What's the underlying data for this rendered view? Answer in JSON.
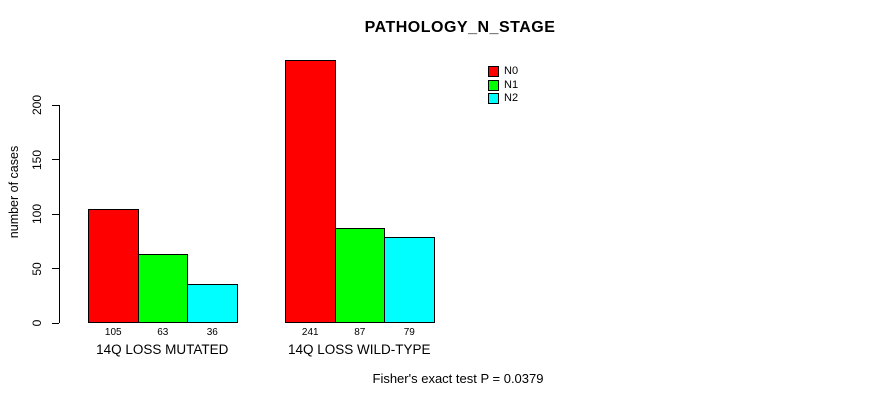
{
  "title": "PATHOLOGY_N_STAGE",
  "annotation": "Fisher's exact test P = 0.0379",
  "chart_data": {
    "type": "bar",
    "grouped": true,
    "title": "PATHOLOGY_N_STAGE",
    "categories": [
      "14Q LOSS MUTATED",
      "14Q LOSS WILD-TYPE"
    ],
    "series": [
      {
        "name": "N0",
        "color": "#FF0000",
        "values": [
          105,
          241
        ]
      },
      {
        "name": "N1",
        "color": "#00FF00",
        "values": [
          63,
          87
        ]
      },
      {
        "name": "N2",
        "color": "#00FFFF",
        "values": [
          36,
          79
        ]
      }
    ],
    "bar_value_labels": [
      [
        "105",
        "63",
        "36"
      ],
      [
        "241",
        "87",
        "79"
      ]
    ],
    "xlabel": "",
    "ylabel": "number of cases",
    "yticks": [
      0,
      50,
      100,
      150,
      200
    ],
    "ylim": [
      0,
      241
    ],
    "grid": false,
    "legend_position": "top-right",
    "annotation": "Fisher's exact test P = 0.0379"
  },
  "legend": {
    "items": [
      {
        "label": "N0",
        "color": "#FF0000"
      },
      {
        "label": "N1",
        "color": "#00FF00"
      },
      {
        "label": "N2",
        "color": "#00FFFF"
      }
    ]
  }
}
